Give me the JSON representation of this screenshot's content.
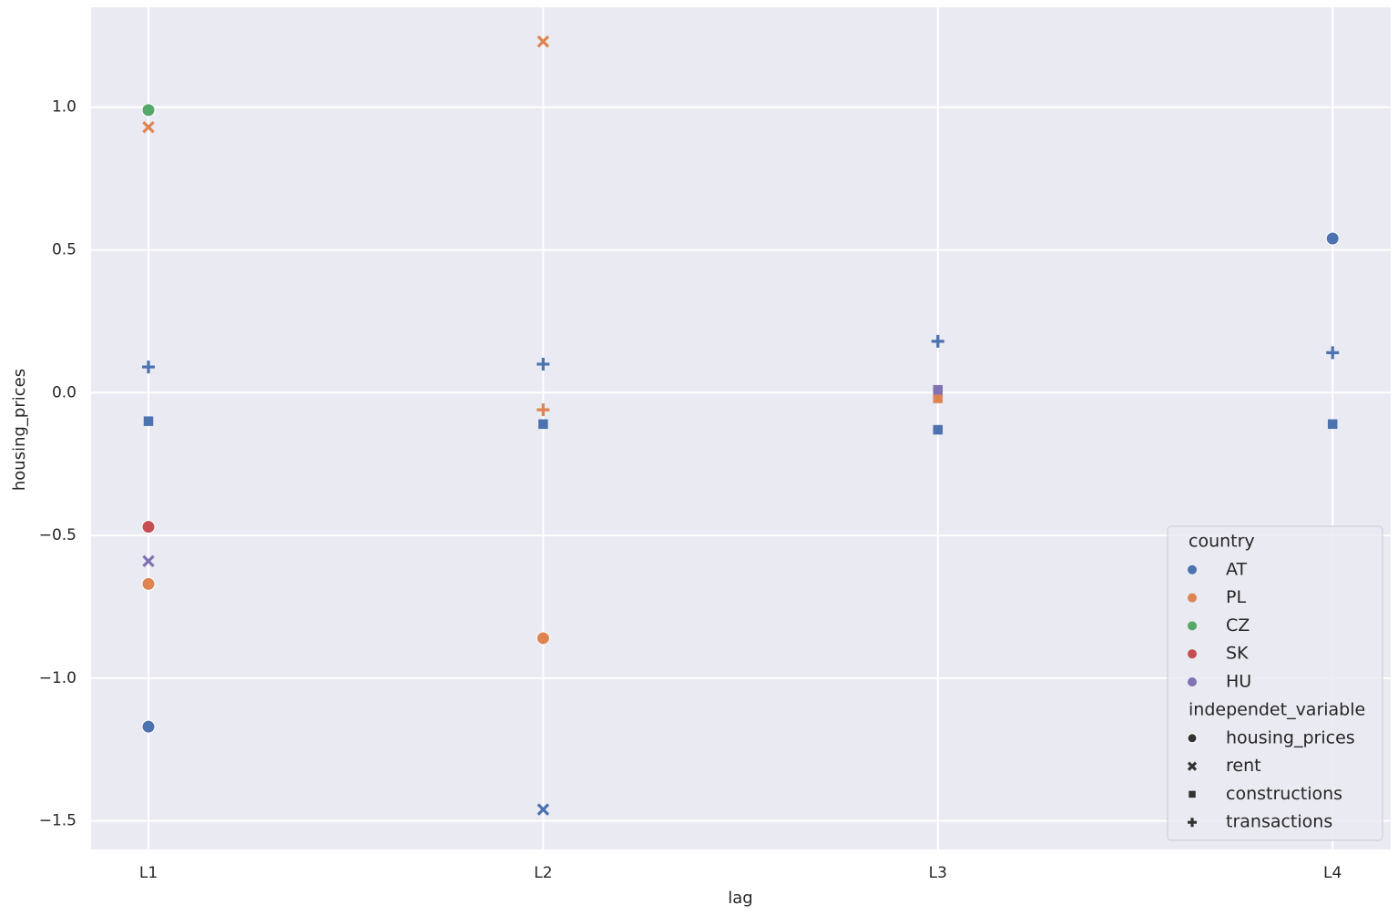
{
  "chart_data": {
    "type": "scatter",
    "x_label": "lag",
    "y_label": "housing_prices",
    "categories": [
      "L1",
      "L2",
      "L3",
      "L4"
    ],
    "ylim": [
      -1.6,
      1.35
    ],
    "yticks": [
      -1.5,
      -1.0,
      -0.5,
      0.0,
      0.5,
      1.0
    ],
    "yticks_labels": [
      "−1.5",
      "−1.0",
      "−0.5",
      "0.0",
      "0.5",
      "1.0"
    ],
    "grid": true,
    "legend_position": "lower right",
    "hue_title": "country",
    "style_title": "independet_variable",
    "styles": [
      {
        "name": "housing_prices",
        "marker": "circle"
      },
      {
        "name": "rent",
        "marker": "x"
      },
      {
        "name": "constructions",
        "marker": "square"
      },
      {
        "name": "transactions",
        "marker": "plus"
      }
    ],
    "series": [
      {
        "name": "AT",
        "color": "#4c72b0",
        "x": [
          "L1",
          "L1",
          "L1",
          "L2",
          "L2",
          "L2",
          "L3",
          "L3",
          "L4",
          "L4",
          "L4"
        ],
        "style": [
          3,
          2,
          0,
          3,
          2,
          1,
          3,
          2,
          0,
          3,
          2
        ],
        "values": [
          0.09,
          -0.1,
          -1.17,
          0.1,
          -0.11,
          -1.46,
          0.18,
          -0.13,
          0.54,
          0.14,
          -0.11
        ]
      },
      {
        "name": "PL",
        "color": "#dd8452",
        "x": [
          "L1",
          "L1",
          "L2",
          "L2",
          "L2",
          "L3"
        ],
        "style": [
          1,
          0,
          1,
          3,
          0,
          2
        ],
        "values": [
          0.93,
          -0.67,
          1.23,
          -0.06,
          -0.86,
          -0.02
        ]
      },
      {
        "name": "CZ",
        "color": "#55a868",
        "x": [
          "L1"
        ],
        "style": [
          0
        ],
        "values": [
          0.99
        ]
      },
      {
        "name": "SK",
        "color": "#c44e52",
        "x": [
          "L1"
        ],
        "style": [
          0
        ],
        "values": [
          -0.47
        ]
      },
      {
        "name": "HU",
        "color": "#8172b3",
        "x": [
          "L1",
          "L3"
        ],
        "style": [
          1,
          2
        ],
        "values": [
          -0.59,
          0.01
        ]
      }
    ]
  }
}
